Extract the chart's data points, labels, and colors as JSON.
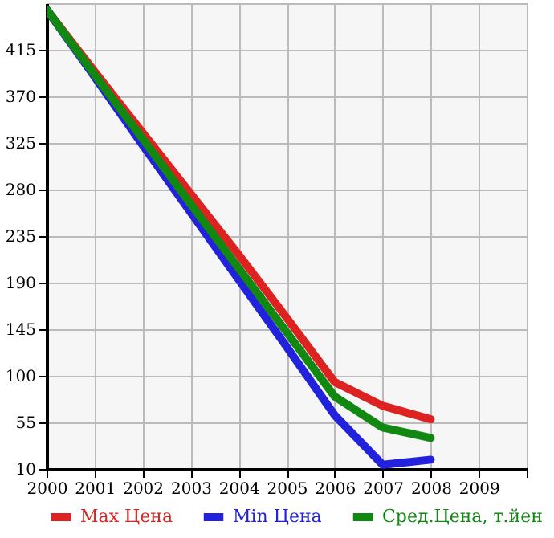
{
  "chart_data": {
    "type": "line",
    "x": [
      2000,
      2001,
      2002,
      2003,
      2004,
      2005,
      2006,
      2007,
      2008
    ],
    "series": [
      {
        "name": "Max Цена",
        "color": "#dd2222",
        "values": [
          454,
          394,
          335,
          276,
          217,
          156,
          94,
          71,
          58
        ]
      },
      {
        "name": "Min Цена",
        "color": "#2222dd",
        "values": [
          454,
          389,
          323,
          258,
          193,
          128,
          62,
          14,
          19
        ]
      },
      {
        "name": "Сред.Цена, т.йен",
        "color": "#118811",
        "values": [
          454,
          391,
          329,
          266,
          204,
          142,
          80,
          50,
          40
        ]
      }
    ],
    "xlim": [
      2000,
      2010
    ],
    "xticks": [
      2000,
      2001,
      2002,
      2003,
      2004,
      2005,
      2006,
      2007,
      2008,
      2009,
      {
        "value": 2010,
        "label": null
      }
    ],
    "ylim": [
      10,
      460
    ],
    "yticks": [
      10,
      55,
      100,
      145,
      190,
      235,
      280,
      325,
      370,
      415
    ],
    "grid": true,
    "legend": "bottom",
    "marker": "none",
    "line_style": "solid"
  }
}
